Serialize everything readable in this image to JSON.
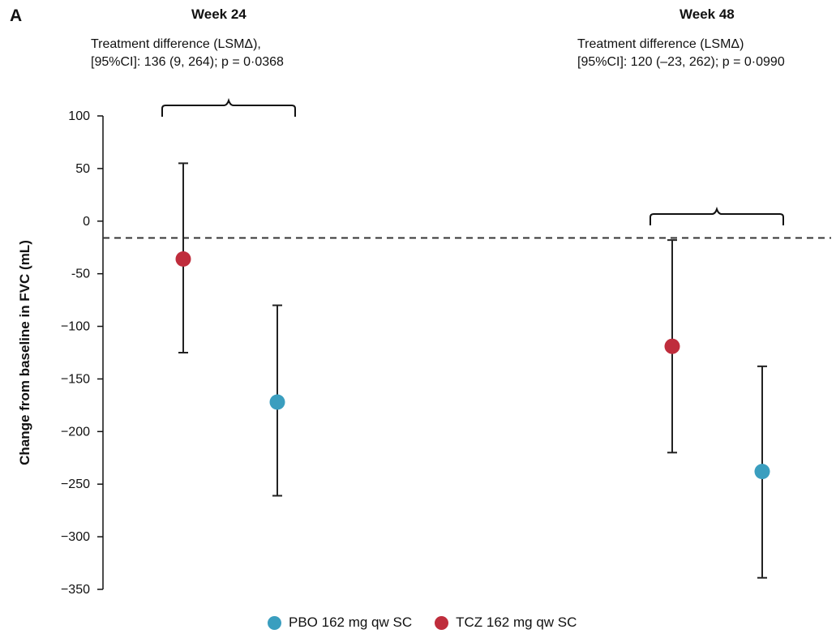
{
  "panel_label": "A",
  "legend": [
    {
      "label": "PBO 162 mg qw SC",
      "color": "#3a9ebf"
    },
    {
      "label": "TCZ 162 mg qw SC",
      "color": "#bf2d3c"
    }
  ],
  "chart_data": {
    "type": "scatter",
    "ylabel": "Change from baseline in FVC (mL)",
    "ylim": [
      -350,
      100
    ],
    "yticks": [
      100,
      50,
      0,
      -50,
      -100,
      -150,
      -200,
      -250,
      -300,
      -350
    ],
    "ytick_labels": [
      "100",
      "50",
      "0",
      "-50",
      "−100",
      "−150",
      "−200",
      "−250",
      "−300",
      "−350"
    ],
    "reference_line": -16,
    "groups": [
      {
        "title": "Week 24",
        "annotation_line1": "Treatment difference (LSMΔ),",
        "annotation_line2": "[95%CI]: 136 (9, 264); p = 0·0368",
        "points": [
          {
            "series": "TCZ 162 mg qw SC",
            "mean": -36,
            "lower": -125,
            "upper": 55
          },
          {
            "series": "PBO 162 mg qw SC",
            "mean": -172,
            "lower": -261,
            "upper": -80
          }
        ]
      },
      {
        "title": "Week 48",
        "annotation_line1": "Treatment difference (LSMΔ)",
        "annotation_line2": "[95%CI]: 120 (–23, 262); p = 0·0990",
        "points": [
          {
            "series": "TCZ 162 mg qw SC",
            "mean": -119,
            "lower": -220,
            "upper": -18
          },
          {
            "series": "PBO 162 mg qw SC",
            "mean": -238,
            "lower": -339,
            "upper": -138
          }
        ]
      }
    ]
  }
}
